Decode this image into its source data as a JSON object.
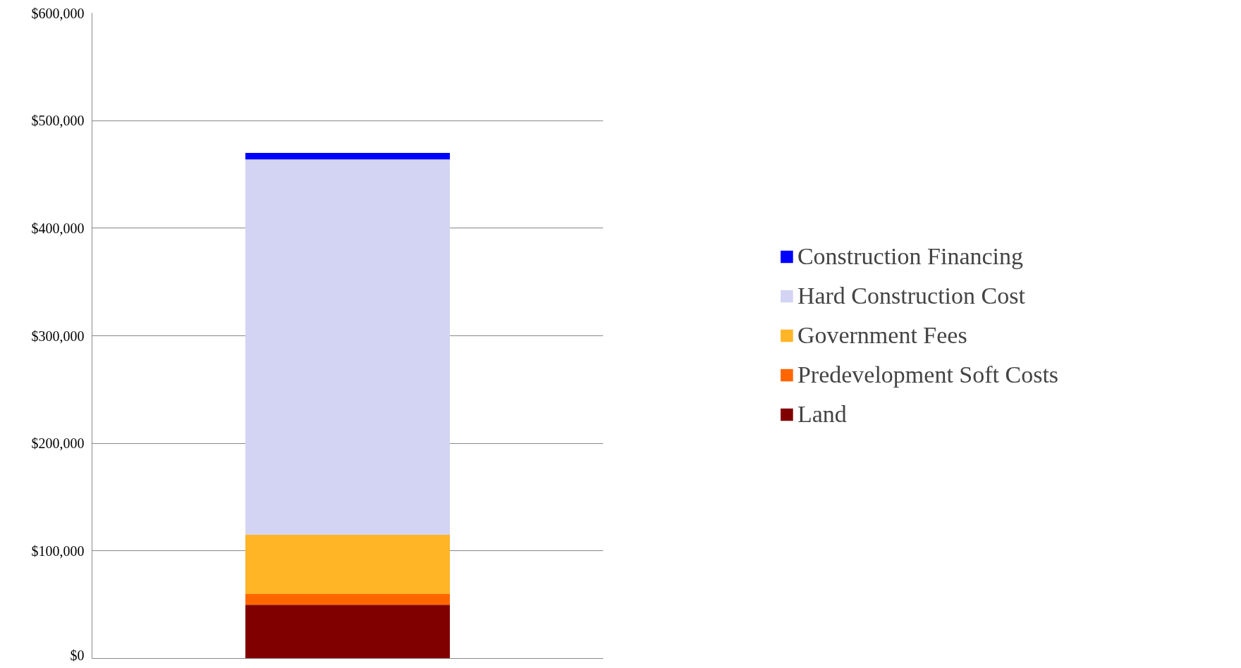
{
  "chart_data": {
    "type": "bar",
    "stacked": true,
    "categories": [
      null
    ],
    "series": [
      {
        "name": "Land",
        "color": "#800000",
        "values": [
          50000
        ]
      },
      {
        "name": "Predevelopment Soft Costs",
        "color": "#ff6600",
        "values": [
          10000
        ]
      },
      {
        "name": "Government Fees",
        "color": "#ffb526",
        "values": [
          55000
        ]
      },
      {
        "name": "Hard Construction Cost",
        "color": "#d3d3f3",
        "values": [
          349000
        ]
      },
      {
        "name": "Construction Financing",
        "color": "#0000ff",
        "values": [
          6000
        ]
      }
    ],
    "ylim": [
      0,
      600000
    ],
    "yticks": [
      {
        "value": 0,
        "label": "$0"
      },
      {
        "value": 100000,
        "label": "$100,000"
      },
      {
        "value": 200000,
        "label": "$200,000"
      },
      {
        "value": 300000,
        "label": "$300,000"
      },
      {
        "value": 400000,
        "label": "$400,000"
      },
      {
        "value": 500000,
        "label": "$500,000"
      },
      {
        "value": 600000,
        "label": "$600,000"
      }
    ],
    "grid": "y",
    "legend": "right",
    "tick_labels": "y"
  }
}
